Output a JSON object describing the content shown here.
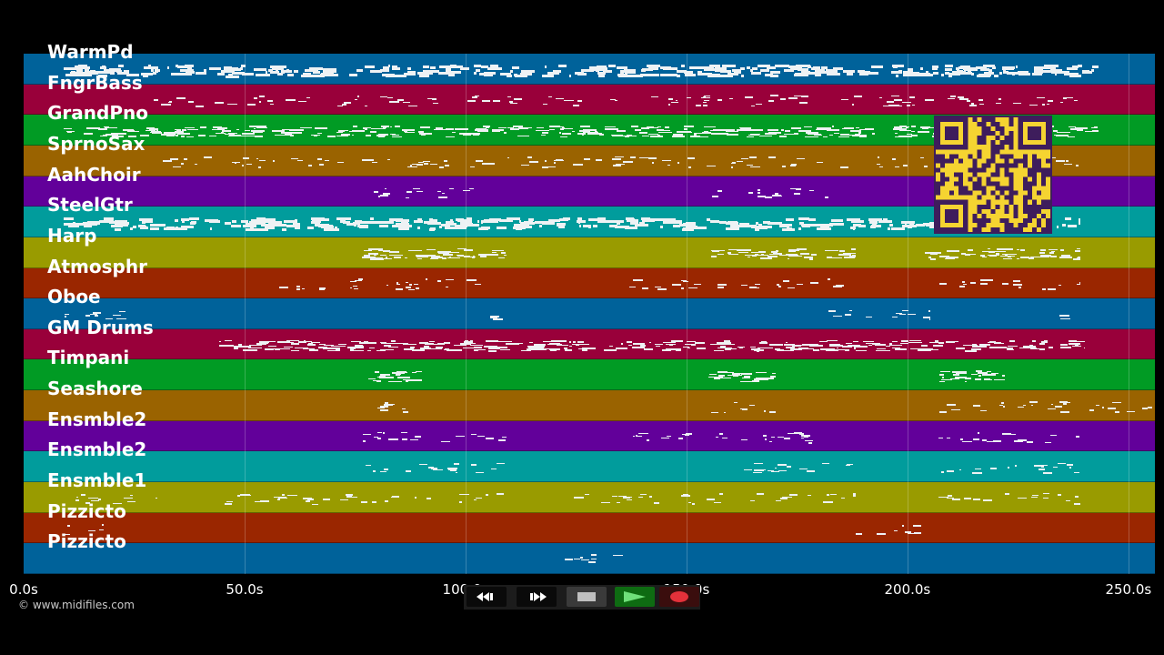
{
  "tracks": [
    {
      "name": "WarmPd",
      "color": "#00629a"
    },
    {
      "name": "FngrBass",
      "color": "#99003a"
    },
    {
      "name": "GrandPno",
      "color": "#019b24"
    },
    {
      "name": "SprnoSax",
      "color": "#9a6300"
    },
    {
      "name": "AahChoir",
      "color": "#62009a"
    },
    {
      "name": "SteelGtr",
      "color": "#019c9c"
    },
    {
      "name": "Harp",
      "color": "#999b00"
    },
    {
      "name": "Atmosphr",
      "color": "#9a2600"
    },
    {
      "name": "Oboe",
      "color": "#00629a"
    },
    {
      "name": "GM Drums",
      "color": "#99003a"
    },
    {
      "name": "Timpani",
      "color": "#019b24"
    },
    {
      "name": "Seashore",
      "color": "#9a6300"
    },
    {
      "name": "Ensmble2",
      "color": "#62009a"
    },
    {
      "name": "Ensmble2",
      "color": "#019c9c"
    },
    {
      "name": "Ensmble1",
      "color": "#999b00"
    },
    {
      "name": "Pizzicto",
      "color": "#9a2600"
    },
    {
      "name": "Pizzicto",
      "color": "#00629a"
    }
  ],
  "timeline": {
    "max_seconds": 256,
    "ticks": [
      {
        "value": 0,
        "label": "0.0s"
      },
      {
        "value": 50,
        "label": "50.0s"
      },
      {
        "value": 100,
        "label": "100.0s"
      },
      {
        "value": 150,
        "label": "150.0s"
      },
      {
        "value": 200,
        "label": "200.0s"
      },
      {
        "value": 250,
        "label": "250.0s"
      }
    ]
  },
  "copyright": "© www.midifiles.com",
  "transport": {
    "buttons": [
      {
        "name": "rewind-button",
        "icon": "rewind-icon"
      },
      {
        "name": "fast-forward-button",
        "icon": "fast-forward-icon"
      },
      {
        "name": "stop-button",
        "icon": "stop-icon"
      },
      {
        "name": "play-button",
        "icon": "play-icon"
      },
      {
        "name": "record-button",
        "icon": "record-icon"
      }
    ]
  },
  "qr": {
    "fg": "#3e1d5c",
    "bg": "#f5d431"
  }
}
